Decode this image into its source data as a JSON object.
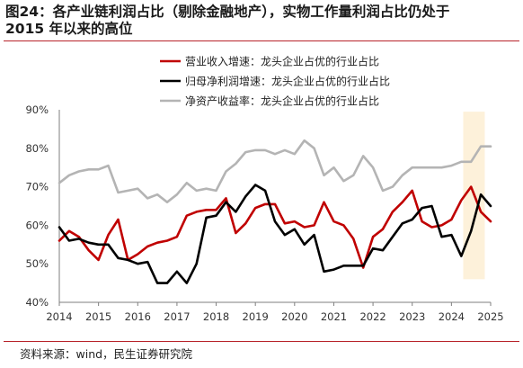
{
  "header": {
    "title_line1": "图24：各产业链利润占比（剔除金融地产），实物工作量利润占比仍处于",
    "title_line2": "2015 年以来的高位"
  },
  "footer": {
    "source": "资料来源：wind，民生证券研究院"
  },
  "chart_data": {
    "type": "line",
    "title": "",
    "xlabel": "",
    "ylabel": "",
    "xlim": [
      2014,
      2025
    ],
    "ylim": [
      40,
      90
    ],
    "y_ticks": [
      "40%",
      "50%",
      "60%",
      "70%",
      "80%",
      "90%"
    ],
    "x_ticks": [
      "2014",
      "2015",
      "2016",
      "2017",
      "2018",
      "2019",
      "2020",
      "2021",
      "2022",
      "2023",
      "2024",
      "2025"
    ],
    "legend_position": "top-center",
    "grid": false,
    "highlight": {
      "x_start": 2024.3,
      "x_end": 2024.85,
      "y_start": 46,
      "y_end": 89.5,
      "color": "#fdf1da"
    },
    "series": [
      {
        "name": "营业收入增速：龙头企业占优的行业占比",
        "color": "#c00000",
        "x": [
          2014.0,
          2014.25,
          2014.5,
          2014.75,
          2015.0,
          2015.25,
          2015.5,
          2015.75,
          2016.0,
          2016.25,
          2016.5,
          2016.75,
          2017.0,
          2017.25,
          2017.5,
          2017.75,
          2018.0,
          2018.25,
          2018.5,
          2018.75,
          2019.0,
          2019.25,
          2019.5,
          2019.75,
          2020.0,
          2020.25,
          2020.5,
          2020.75,
          2021.0,
          2021.25,
          2021.5,
          2021.75,
          2022.0,
          2022.25,
          2022.5,
          2022.75,
          2023.0,
          2023.25,
          2023.5,
          2023.75,
          2024.0,
          2024.25,
          2024.5,
          2024.75,
          2025.0
        ],
        "values": [
          56,
          58.5,
          57,
          53.5,
          51,
          57.5,
          61.5,
          51,
          52.5,
          54.5,
          55.5,
          56,
          57,
          62.5,
          63.5,
          64,
          64,
          67,
          58,
          60.5,
          64.5,
          65.5,
          65.5,
          60.5,
          61,
          59.5,
          60,
          66,
          61,
          60,
          56.5,
          49,
          57,
          59,
          63.5,
          66,
          69,
          61,
          59.5,
          60,
          61.5,
          66.5,
          70,
          63.5,
          61
        ]
      },
      {
        "name": "归母净利润增速：龙头企业占优的行业占比",
        "color": "#000000",
        "x": [
          2014.0,
          2014.25,
          2014.5,
          2014.75,
          2015.0,
          2015.25,
          2015.5,
          2015.75,
          2016.0,
          2016.25,
          2016.5,
          2016.75,
          2017.0,
          2017.25,
          2017.5,
          2017.75,
          2018.0,
          2018.25,
          2018.5,
          2018.75,
          2019.0,
          2019.25,
          2019.5,
          2019.75,
          2020.0,
          2020.25,
          2020.5,
          2020.75,
          2021.0,
          2021.25,
          2021.5,
          2021.75,
          2022.0,
          2022.25,
          2022.5,
          2022.75,
          2023.0,
          2023.25,
          2023.5,
          2023.75,
          2024.0,
          2024.25,
          2024.5,
          2024.75,
          2025.0
        ],
        "values": [
          59.5,
          56,
          56.5,
          55.5,
          55,
          55,
          51.5,
          51,
          50,
          50.5,
          45,
          45,
          48,
          45,
          50,
          62,
          62.5,
          66,
          63.5,
          67.5,
          70.5,
          69,
          61,
          57.5,
          59,
          55,
          57.5,
          48,
          48.5,
          49.5,
          49.5,
          49.5,
          54,
          53.5,
          57,
          60.5,
          61.5,
          64.5,
          65,
          57,
          57.5,
          52,
          58.5,
          68,
          65
        ]
      },
      {
        "name": "净资产收益率：龙头企业占优的行业占比",
        "color": "#b4b4b4",
        "x": [
          2014.0,
          2014.25,
          2014.5,
          2014.75,
          2015.0,
          2015.25,
          2015.5,
          2015.75,
          2016.0,
          2016.25,
          2016.5,
          2016.75,
          2017.0,
          2017.25,
          2017.5,
          2017.75,
          2018.0,
          2018.25,
          2018.5,
          2018.75,
          2019.0,
          2019.25,
          2019.5,
          2019.75,
          2020.0,
          2020.25,
          2020.5,
          2020.75,
          2021.0,
          2021.25,
          2021.5,
          2021.75,
          2022.0,
          2022.25,
          2022.5,
          2022.75,
          2023.0,
          2023.25,
          2023.5,
          2023.75,
          2024.0,
          2024.25,
          2024.5,
          2024.75,
          2025.0
        ],
        "values": [
          71,
          73,
          74,
          74.5,
          74.5,
          75.5,
          68.5,
          69,
          69.5,
          67,
          68,
          66,
          68,
          71,
          69,
          69.5,
          69,
          74,
          76,
          79,
          79.5,
          79.5,
          78.5,
          79.5,
          78.5,
          82,
          80,
          73,
          75,
          71.5,
          73,
          78,
          75,
          69,
          70,
          73,
          75,
          75,
          75,
          75,
          75.5,
          76.5,
          76.5,
          80.5,
          80.5
        ]
      }
    ]
  }
}
